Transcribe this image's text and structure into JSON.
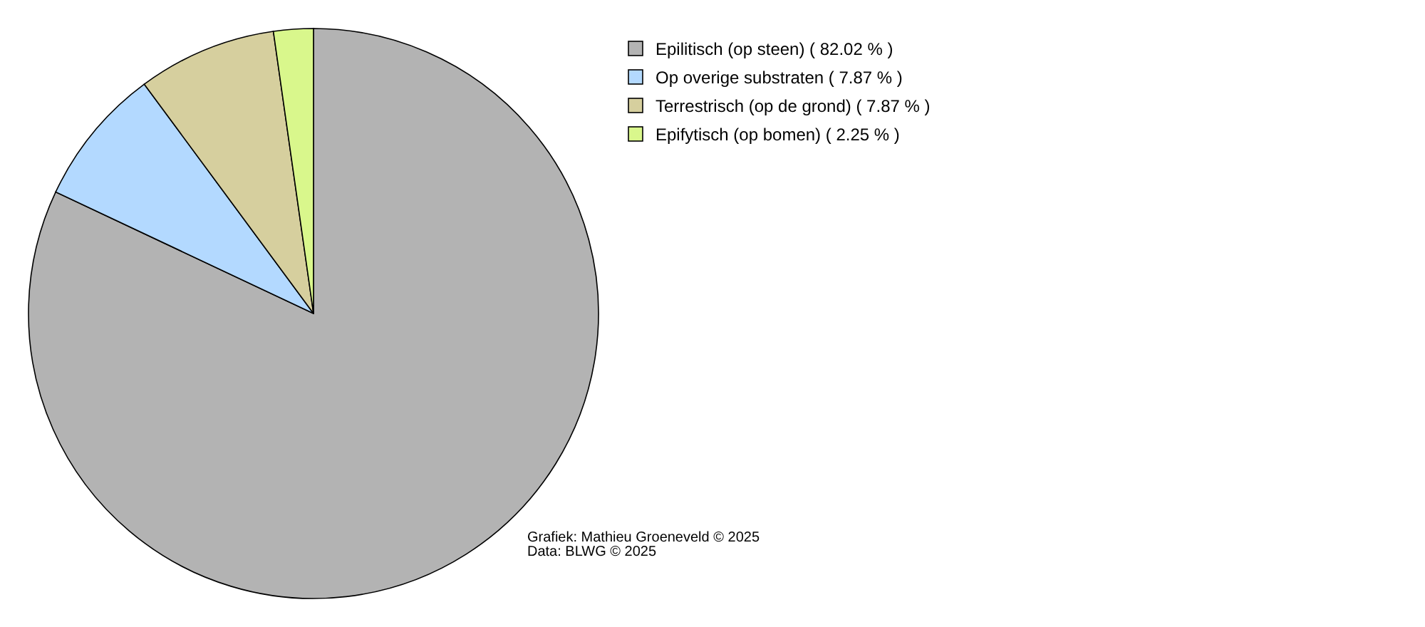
{
  "chart_data": {
    "type": "pie",
    "categories": [
      "Epilitisch (op steen) ( 82.02 % )",
      "Op overige substraten ( 7.87 % )",
      "Terrestrisch (op de grond) ( 7.87 % )",
      "Epifytisch (op bomen) ( 2.25 % )"
    ],
    "values": [
      82.02,
      7.87,
      7.87,
      2.25
    ],
    "colors": [
      "#b3b3b3",
      "#b3d9ff",
      "#d6cf9e",
      "#d9f78c"
    ],
    "legend": "top right",
    "annotations": [
      "Grafiek: Mathieu Groeneveld © 2025",
      "Data: BLWG © 2025"
    ]
  }
}
